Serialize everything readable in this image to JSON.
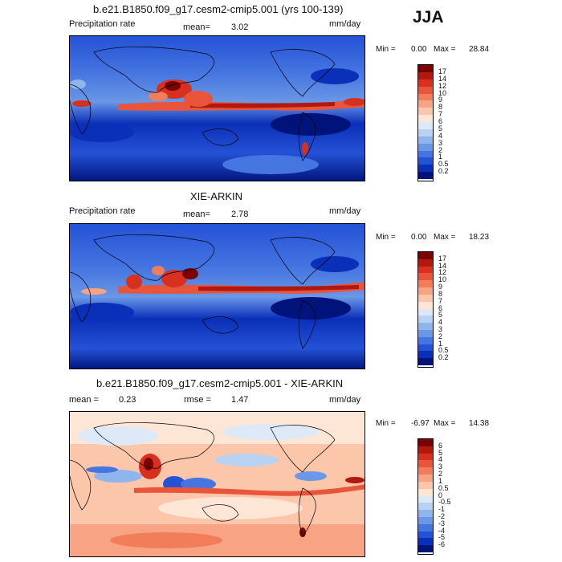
{
  "season": "JJA",
  "panels": [
    {
      "title": "b.e21.B1850.f09_g17.cesm2-cmip5.001 (yrs 100-139)",
      "left_label": "Precipitation rate",
      "mid_label": "mean=",
      "mid_value": "3.02",
      "mid2_label": "",
      "mid2_value": "",
      "units": "mm/day",
      "min_label": "Min =",
      "min_value": "0.00",
      "max_label": "Max =",
      "max_value": "28.84"
    },
    {
      "title": "XIE-ARKIN",
      "left_label": "Precipitation rate",
      "mid_label": "mean=",
      "mid_value": "2.78",
      "mid2_label": "",
      "mid2_value": "",
      "units": "mm/day",
      "min_label": "Min =",
      "min_value": "0.00",
      "max_label": "Max =",
      "max_value": "18.23"
    },
    {
      "title": "b.e21.B1850.f09_g17.cesm2-cmip5.001 - XIE-ARKIN",
      "left_label": "mean =",
      "mid_label": "",
      "mid_value": "0.23",
      "mid2_label": "rmse =",
      "mid2_value": "1.47",
      "units": "mm/day",
      "min_label": "Min =",
      "min_value": "-6.97",
      "max_label": "Max =",
      "max_value": "14.38"
    }
  ],
  "colorbars": {
    "precip": {
      "labels": [
        "17",
        "14",
        "12",
        "10",
        "9",
        "8",
        "7",
        "6",
        "5",
        "4",
        "3",
        "2",
        "1",
        "0.5",
        "0.2"
      ],
      "colors": [
        "#7a0000",
        "#b2180e",
        "#d7301f",
        "#e8553a",
        "#f27d5a",
        "#f8a383",
        "#fcc6aa",
        "#fde6d6",
        "#dde9f7",
        "#b9d2f2",
        "#8eb5ec",
        "#6a97e6",
        "#4575e0",
        "#2452d6",
        "#0a2fb8",
        "#00137a"
      ]
    },
    "diff": {
      "labels": [
        "6",
        "5",
        "4",
        "3",
        "2",
        "1",
        "0.5",
        "0",
        "-0.5",
        "-1",
        "-2",
        "-3",
        "-4",
        "-5",
        "-6"
      ],
      "colors": [
        "#7a0000",
        "#b2180e",
        "#d7301f",
        "#e8553a",
        "#f27d5a",
        "#f8a383",
        "#fcc6aa",
        "#fde6d6",
        "#dde9f7",
        "#b9d2f2",
        "#8eb5ec",
        "#6a97e6",
        "#4575e0",
        "#2452d6",
        "#0a2fb8",
        "#00137a"
      ]
    }
  },
  "chart_data": [
    {
      "type": "heatmap",
      "title": "b.e21.B1850.f09_g17.cesm2-cmip5.001 (yrs 100-139)",
      "variable": "Precipitation rate",
      "units": "mm/day",
      "mean": 3.02,
      "min": 0.0,
      "max": 28.84,
      "levels": [
        0.2,
        0.5,
        1,
        2,
        3,
        4,
        5,
        6,
        7,
        8,
        9,
        10,
        12,
        14,
        17
      ]
    },
    {
      "type": "heatmap",
      "title": "XIE-ARKIN",
      "variable": "Precipitation rate",
      "units": "mm/day",
      "mean": 2.78,
      "min": 0.0,
      "max": 18.23,
      "levels": [
        0.2,
        0.5,
        1,
        2,
        3,
        4,
        5,
        6,
        7,
        8,
        9,
        10,
        12,
        14,
        17
      ]
    },
    {
      "type": "heatmap",
      "title": "b.e21.B1850.f09_g17.cesm2-cmip5.001 - XIE-ARKIN",
      "units": "mm/day",
      "mean": 0.23,
      "rmse": 1.47,
      "min": -6.97,
      "max": 14.38,
      "levels": [
        -6,
        -5,
        -4,
        -3,
        -2,
        -1,
        -0.5,
        0,
        0.5,
        1,
        2,
        3,
        4,
        5,
        6
      ]
    }
  ]
}
